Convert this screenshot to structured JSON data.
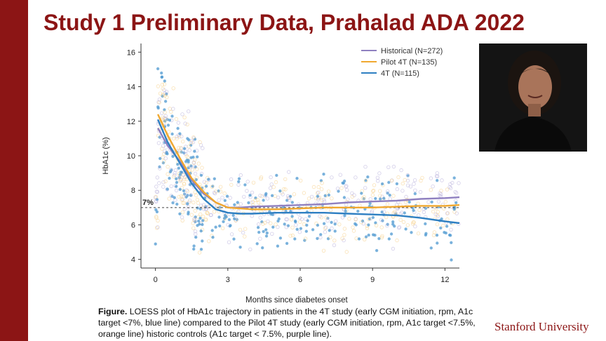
{
  "slide": {
    "title": "Study 1 Preliminary Data, Prahalad ADA 2022",
    "brand_color": "#8c1515",
    "university": "Stanford University",
    "photo_alt": "speaker headshot"
  },
  "caption": {
    "lead": "Figure.",
    "text": " LOESS plot of HbA1c trajectory in patients in the 4T study (early CGM initiation, rpm, A1c target <7%, blue line) compared to the Pilot 4T study (early CGM initiation, rpm, A1c target <7.5%, orange line) historic controls (A1c target < 7.5%, purple line)."
  },
  "chart_data": {
    "type": "scatter",
    "title": "",
    "xlabel": "Months since diabetes onset",
    "ylabel": "HbA1c (%)",
    "xlim": [
      -0.6,
      12.6
    ],
    "ylim": [
      3.5,
      16.5
    ],
    "x_ticks": [
      0,
      3,
      6,
      9,
      12
    ],
    "y_ticks": [
      4,
      6,
      8,
      10,
      12,
      14,
      16
    ],
    "grid": false,
    "legend_position": "top-right",
    "reference_line": {
      "y": 7,
      "label": "7%"
    },
    "series": [
      {
        "name": "Historical (N=272)",
        "color": "#8f80c0",
        "x": [
          0.1,
          0.5,
          1,
          1.5,
          2,
          2.5,
          3,
          3.5,
          4,
          5,
          6,
          7,
          8,
          9,
          10,
          11,
          12,
          12.6
        ],
        "y": [
          11.6,
          10.6,
          9.7,
          8.6,
          7.8,
          7.3,
          7.0,
          7.0,
          7.05,
          7.1,
          7.15,
          7.2,
          7.3,
          7.35,
          7.4,
          7.5,
          7.55,
          7.6
        ]
      },
      {
        "name": "Pilot 4T (N=135)",
        "color": "#f0a830",
        "x": [
          0.1,
          0.5,
          1,
          1.5,
          2,
          2.5,
          3,
          3.5,
          4,
          5,
          6,
          7,
          8,
          9,
          10,
          11,
          12,
          12.6
        ],
        "y": [
          12.4,
          11.2,
          9.9,
          8.7,
          7.9,
          7.3,
          7.0,
          6.95,
          6.9,
          6.9,
          6.95,
          7.0,
          7.0,
          7.0,
          7.05,
          7.1,
          7.1,
          7.15
        ]
      },
      {
        "name": "4T (N=115)",
        "color": "#2e7fc2",
        "x": [
          0.1,
          0.5,
          1,
          1.5,
          2,
          2.5,
          3,
          3.5,
          4,
          5,
          6,
          7,
          8,
          9,
          10,
          11,
          12,
          12.6
        ],
        "y": [
          12.1,
          10.8,
          9.6,
          8.4,
          7.5,
          6.9,
          6.7,
          6.65,
          6.65,
          6.7,
          6.7,
          6.7,
          6.65,
          6.6,
          6.55,
          6.4,
          6.2,
          6.1
        ]
      }
    ]
  }
}
